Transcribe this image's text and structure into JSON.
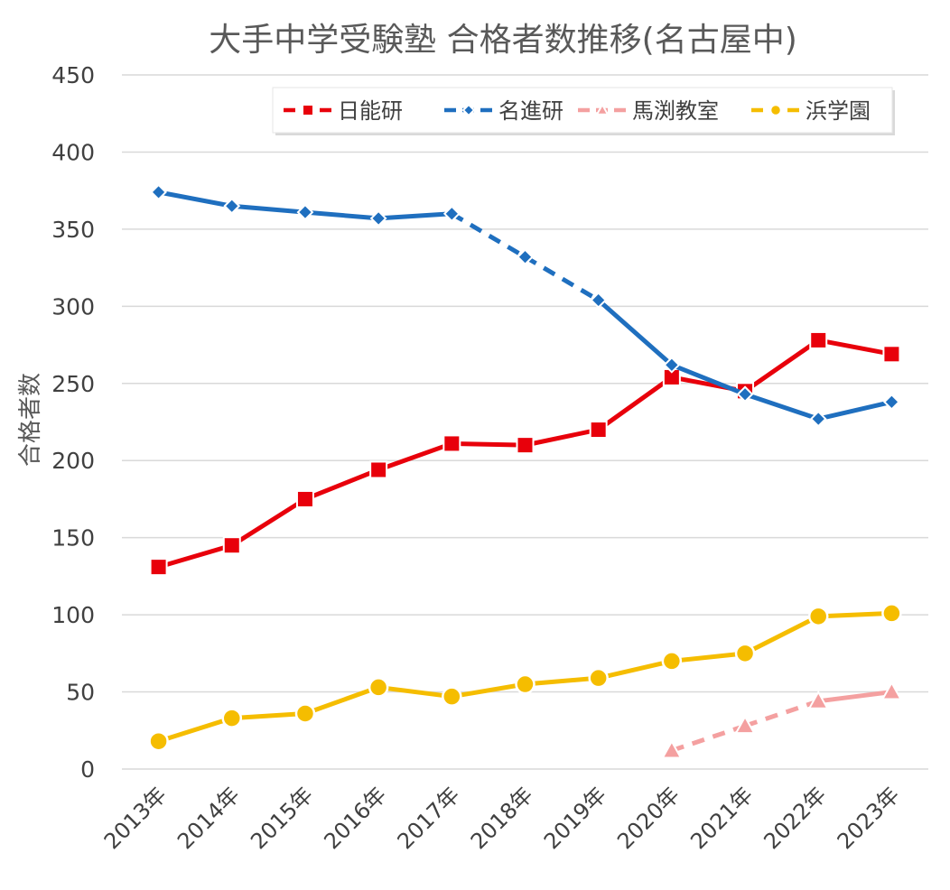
{
  "chart_data": {
    "type": "line",
    "title": "大手中学受験塾 合格者数推移(名古屋中)",
    "ylabel": "合格者数",
    "xlabel": "",
    "ylim": [
      0,
      450
    ],
    "yticks": [
      0,
      50,
      100,
      150,
      200,
      250,
      300,
      350,
      400,
      450
    ],
    "categories": [
      "2013年",
      "2014年",
      "2015年",
      "2016年",
      "2017年",
      "2018年",
      "2019年",
      "2020年",
      "2021年",
      "2022年",
      "2023年"
    ],
    "grid": true,
    "legend_position": "top-right",
    "series": [
      {
        "name": "日能研",
        "color": "#e8000b",
        "marker": "square",
        "values": [
          131,
          145,
          175,
          194,
          211,
          210,
          220,
          254,
          245,
          278,
          269
        ],
        "dashed_segments": []
      },
      {
        "name": "名進研",
        "color": "#1f6fbf",
        "marker": "diamond",
        "values": [
          374,
          365,
          361,
          357,
          360,
          332,
          304,
          262,
          243,
          227,
          238
        ],
        "dashed_segments": [
          [
            4,
            6
          ]
        ]
      },
      {
        "name": "馬渕教室",
        "color": "#f4a0a0",
        "marker": "triangle",
        "values": [
          null,
          null,
          null,
          null,
          null,
          null,
          null,
          12,
          28,
          44,
          50
        ],
        "dashed_segments": [
          [
            7,
            9
          ]
        ]
      },
      {
        "name": "浜学園",
        "color": "#f5bd00",
        "marker": "circle",
        "values": [
          18,
          33,
          36,
          53,
          47,
          55,
          59,
          70,
          75,
          99,
          101
        ],
        "dashed_segments": []
      }
    ]
  }
}
